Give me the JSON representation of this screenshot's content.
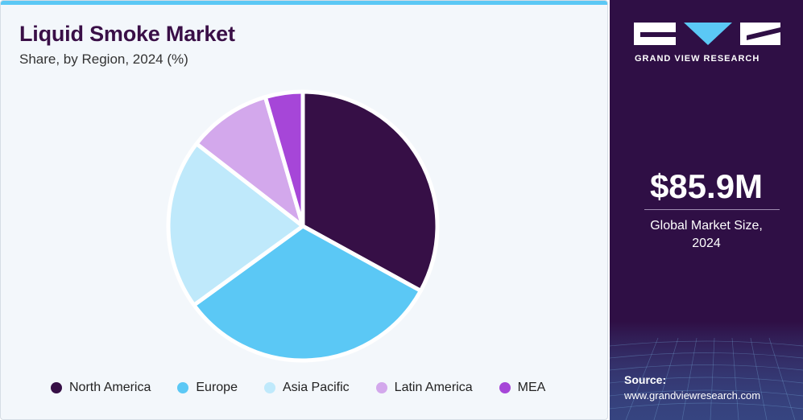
{
  "header": {
    "title": "Liquid Smoke Market",
    "subtitle": "Share, by Region, 2024 (%)"
  },
  "chart_data": {
    "type": "pie",
    "categories": [
      "North America",
      "Europe",
      "Asia Pacific",
      "Latin America",
      "MEA"
    ],
    "values": [
      33.0,
      32.0,
      20.5,
      10.0,
      4.5
    ],
    "colors": [
      "#360f46",
      "#5bc8f5",
      "#bfe9fb",
      "#d3a8ec",
      "#a646d8"
    ],
    "legend_position": "bottom",
    "title": "Liquid Smoke Market",
    "subtitle": "Share, by Region, 2024 (%)"
  },
  "sidebar": {
    "brand": "GRAND VIEW RESEARCH",
    "market_value": "$85.9M",
    "market_label_line1": "Global Market Size,",
    "market_label_line2": "2024",
    "source_label": "Source:",
    "source_url": "www.grandviewresearch.com"
  },
  "colors": {
    "sidebar_bg": "#2f0f45",
    "accent": "#5bc8f5",
    "title": "#3a0f47"
  }
}
